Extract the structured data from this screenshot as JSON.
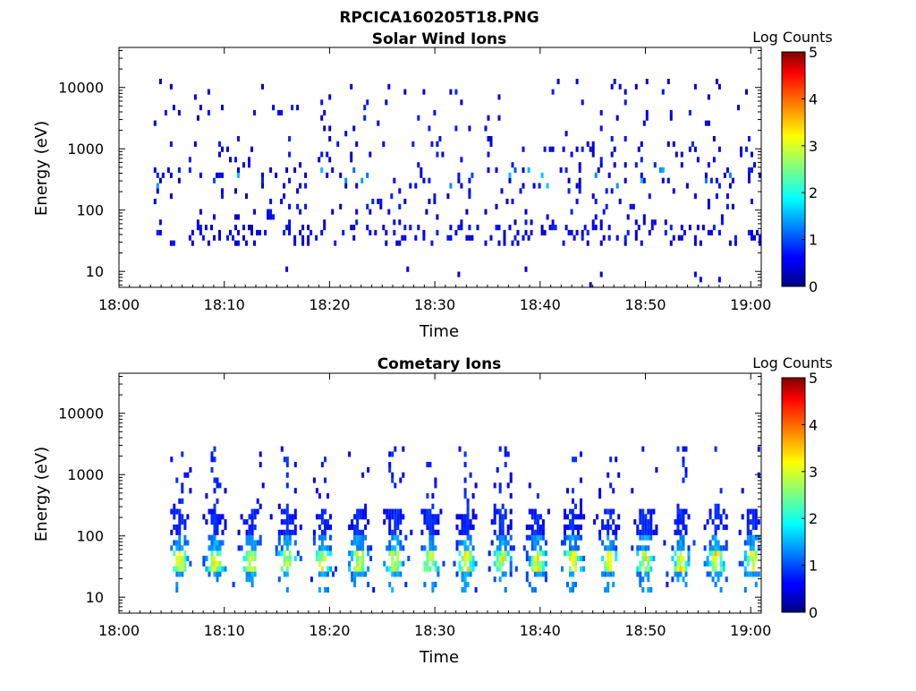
{
  "page": {
    "title": "RPCICA160205T18.PNG"
  },
  "chart_data": [
    {
      "type": "heatmap",
      "title": "Solar Wind Ions",
      "xlabel": "Time",
      "ylabel": "Energy (eV)",
      "x_range": [
        "18:00",
        "19:01"
      ],
      "y_range_eV": [
        5.5,
        45000
      ],
      "y_scale": "log",
      "x_ticks": [
        "18:00",
        "18:10",
        "18:20",
        "18:30",
        "18:40",
        "18:50",
        "19:00"
      ],
      "y_ticks": [
        {
          "value": 10,
          "label": "10"
        },
        {
          "value": 100,
          "label": "100"
        },
        {
          "value": 1000,
          "label": "1000"
        },
        {
          "value": 10000,
          "label": "10000"
        }
      ],
      "colorbar": {
        "label": "Log Counts",
        "min": 0,
        "max": 5,
        "ticks": [
          "0",
          "1",
          "2",
          "3",
          "4",
          "5"
        ],
        "colormap": "jet"
      },
      "grid": false,
      "data": {
        "time_start_min": 3.3,
        "time_end_min": 61,
        "sweep_period_min": 0.6,
        "main_band_eV": [
          30,
          1500
        ],
        "peak_band_eV": [
          250,
          500
        ],
        "peak_log_counts": 1.5,
        "typical_log_counts": 0.3
      }
    },
    {
      "type": "heatmap",
      "title": "Cometary Ions",
      "xlabel": "Time",
      "ylabel": "Energy (eV)",
      "x_range": [
        "18:00",
        "19:01"
      ],
      "y_range_eV": [
        5.5,
        45000
      ],
      "y_scale": "log",
      "x_ticks": [
        "18:00",
        "18:10",
        "18:20",
        "18:30",
        "18:40",
        "18:50",
        "19:00"
      ],
      "y_ticks": [
        {
          "value": 10,
          "label": "10"
        },
        {
          "value": 100,
          "label": "100"
        },
        {
          "value": 1000,
          "label": "1000"
        },
        {
          "value": 10000,
          "label": "10000"
        }
      ],
      "colorbar": {
        "label": "Log Counts",
        "min": 0,
        "max": 5,
        "ticks": [
          "0",
          "1",
          "2",
          "3",
          "4",
          "5"
        ],
        "colormap": "jet"
      },
      "grid": false,
      "data": {
        "time_start_min": 4.1,
        "time_end_min": 60.9,
        "burst_period_min": 3.4,
        "main_band_eV": [
          20,
          300
        ],
        "peak_band_eV": [
          25,
          60
        ],
        "peak_log_counts": 2.0,
        "typical_log_counts": 0.6
      }
    }
  ]
}
